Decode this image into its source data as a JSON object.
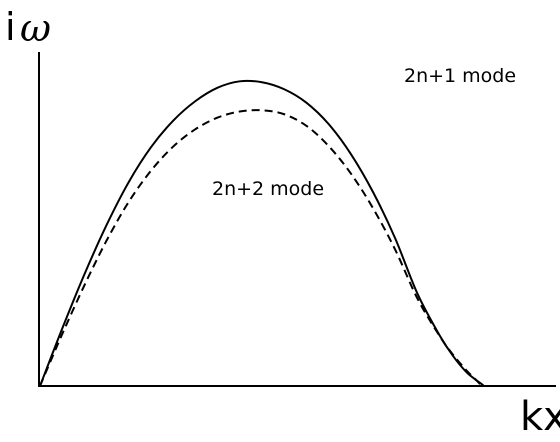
{
  "chart_data": {
    "type": "line",
    "title": "",
    "ylabel_prefix": "i",
    "ylabel_symbol": "ω",
    "xlabel": "kx",
    "grid": false,
    "legend": "none",
    "series": [
      {
        "name": "2n+1 mode",
        "line_style": "solid",
        "color": "#000000",
        "x": [
          0,
          0.05,
          0.1,
          0.15,
          0.2,
          0.25,
          0.3,
          0.35,
          0.4,
          0.45,
          0.5,
          0.55,
          0.6,
          0.65,
          0.7,
          0.75,
          0.8,
          0.85,
          0.9,
          0.93,
          0.96,
          0.98,
          0.995,
          1.0
        ],
        "y": [
          0,
          0.188,
          0.366,
          0.528,
          0.669,
          0.783,
          0.87,
          0.934,
          0.978,
          0.999,
          0.996,
          0.973,
          0.929,
          0.859,
          0.761,
          0.636,
          0.484,
          0.303,
          0.166,
          0.099,
          0.046,
          0.022,
          0.006,
          0
        ]
      },
      {
        "name": "2n+2 mode",
        "line_style": "dashed",
        "color": "#000000",
        "x": [
          0,
          0.05,
          0.1,
          0.15,
          0.2,
          0.25,
          0.3,
          0.35,
          0.4,
          0.45,
          0.5,
          0.55,
          0.6,
          0.65,
          0.7,
          0.75,
          0.8,
          0.85,
          0.9,
          0.93,
          0.96,
          0.98,
          0.99,
          0.995
        ],
        "y": [
          0,
          0.17,
          0.33,
          0.477,
          0.604,
          0.706,
          0.785,
          0.842,
          0.88,
          0.9,
          0.904,
          0.891,
          0.853,
          0.787,
          0.697,
          0.583,
          0.447,
          0.287,
          0.164,
          0.103,
          0.052,
          0.023,
          0.008,
          0
        ]
      }
    ]
  }
}
